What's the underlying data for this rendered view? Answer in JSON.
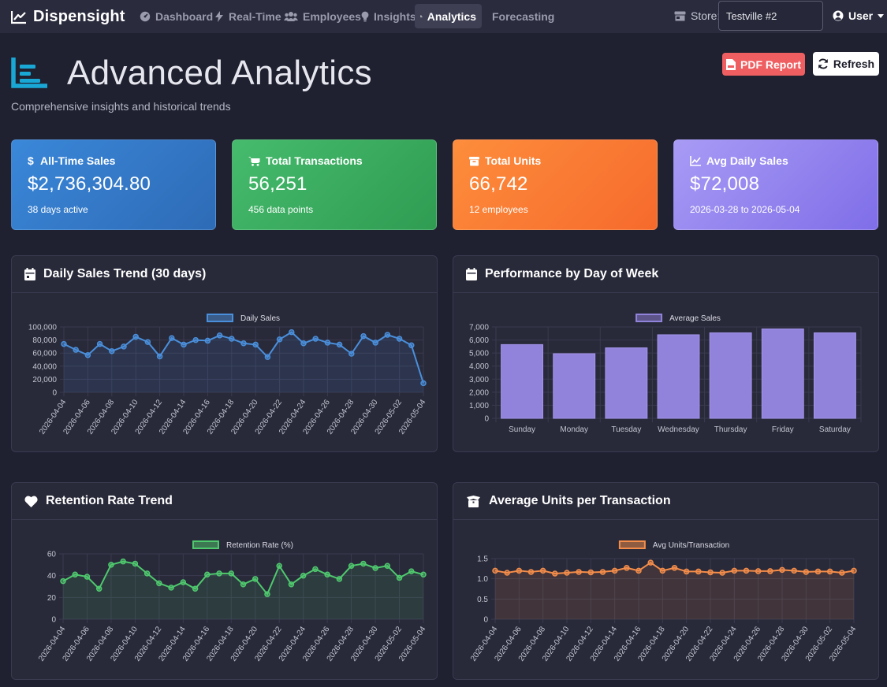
{
  "app": {
    "brand": "Dispensight",
    "nav": [
      {
        "label": "Dashboard",
        "icon": "dashboard-gauge-icon"
      },
      {
        "label": "Real-Time",
        "icon": "bolt-icon"
      },
      {
        "label": "Employees",
        "icon": "users-icon"
      },
      {
        "label": "Insights",
        "icon": "lightbulb-icon"
      },
      {
        "label": "Analytics",
        "icon": "chart-line-icon",
        "active": true
      },
      {
        "label": "Forecasting",
        "icon": ""
      }
    ],
    "store_label": "Store:",
    "store_value": "Testville #2",
    "user_label": "User"
  },
  "header": {
    "title": "Advanced Analytics",
    "subtitle": "Comprehensive insights and historical trends",
    "pdf_button": "PDF Report",
    "refresh_button": "Refresh"
  },
  "stats": [
    {
      "label": "All-Time Sales",
      "value": "$2,736,304.80",
      "note": "38 days active",
      "icon": "dollar-icon"
    },
    {
      "label": "Total Transactions",
      "value": "56,251",
      "note": "456 data points",
      "icon": "cart-icon"
    },
    {
      "label": "Total Units",
      "value": "66,742",
      "note": "12 employees",
      "icon": "box-icon"
    },
    {
      "label": "Avg Daily Sales",
      "value": "$72,008",
      "note": "2026-03-28 to 2026-05-04",
      "icon": "chart-area-icon"
    }
  ],
  "colors": {
    "sales_line": "#4a8fdc",
    "dow_bar": "#9182dc",
    "retention_line": "#4fc96e",
    "units_line": "#f58d4a",
    "gridline": "#3a3b4f"
  },
  "chart_data": [
    {
      "id": "daily_sales",
      "type": "line",
      "card_title": "Daily Sales Trend (30 days)",
      "legend": "Daily Sales",
      "x": [
        "2026-04-04",
        "2026-04-05",
        "2026-04-06",
        "2026-04-07",
        "2026-04-08",
        "2026-04-09",
        "2026-04-10",
        "2026-04-11",
        "2026-04-12",
        "2026-04-13",
        "2026-04-14",
        "2026-04-15",
        "2026-04-16",
        "2026-04-17",
        "2026-04-18",
        "2026-04-19",
        "2026-04-20",
        "2026-04-21",
        "2026-04-22",
        "2026-04-23",
        "2026-04-24",
        "2026-04-25",
        "2026-04-26",
        "2026-04-27",
        "2026-04-28",
        "2026-04-29",
        "2026-04-30",
        "2026-05-01",
        "2026-05-02",
        "2026-05-03",
        "2026-05-04"
      ],
      "xticks": [
        "2026-04-04",
        "2026-04-06",
        "2026-04-08",
        "2026-04-10",
        "2026-04-12",
        "2026-04-14",
        "2026-04-16",
        "2026-04-18",
        "2026-04-20",
        "2026-04-22",
        "2026-04-24",
        "2026-04-26",
        "2026-04-28",
        "2026-04-30",
        "2026-05-02",
        "2026-05-04"
      ],
      "values": [
        74000,
        65000,
        57000,
        74000,
        63000,
        70000,
        85000,
        77000,
        55000,
        83000,
        73000,
        80000,
        79000,
        87000,
        82000,
        75000,
        73000,
        54000,
        81000,
        92000,
        75000,
        82000,
        76000,
        73000,
        59000,
        86000,
        76000,
        88000,
        82000,
        72000,
        14000
      ],
      "ylim": [
        0,
        100000
      ],
      "yticks": [
        "0",
        "20,000",
        "40,000",
        "60,000",
        "80,000",
        "100,000"
      ],
      "grid": true
    },
    {
      "id": "day_of_week",
      "type": "bar",
      "card_title": "Performance by Day of Week",
      "legend": "Average Sales",
      "categories": [
        "Sunday",
        "Monday",
        "Tuesday",
        "Wednesday",
        "Thursday",
        "Friday",
        "Saturday"
      ],
      "values": [
        5650,
        4950,
        5400,
        6400,
        6550,
        6850,
        6550
      ],
      "ylim": [
        0,
        7000
      ],
      "yticks": [
        "0",
        "1,000",
        "2,000",
        "3,000",
        "4,000",
        "5,000",
        "6,000",
        "7,000"
      ],
      "grid": true
    },
    {
      "id": "retention",
      "type": "line",
      "card_title": "Retention Rate Trend",
      "legend": "Retention Rate (%)",
      "x": [
        "2026-04-04",
        "2026-04-05",
        "2026-04-06",
        "2026-04-07",
        "2026-04-08",
        "2026-04-09",
        "2026-04-10",
        "2026-04-11",
        "2026-04-12",
        "2026-04-13",
        "2026-04-14",
        "2026-04-15",
        "2026-04-16",
        "2026-04-17",
        "2026-04-18",
        "2026-04-19",
        "2026-04-20",
        "2026-04-21",
        "2026-04-22",
        "2026-04-23",
        "2026-04-24",
        "2026-04-25",
        "2026-04-26",
        "2026-04-27",
        "2026-04-28",
        "2026-04-29",
        "2026-04-30",
        "2026-05-01",
        "2026-05-02",
        "2026-05-03",
        "2026-05-04"
      ],
      "xticks": [
        "2026-04-04",
        "2026-04-06",
        "2026-04-08",
        "2026-04-10",
        "2026-04-12",
        "2026-04-14",
        "2026-04-16",
        "2026-04-18",
        "2026-04-20",
        "2026-04-22",
        "2026-04-24",
        "2026-04-26",
        "2026-04-28",
        "2026-04-30",
        "2026-05-02",
        "2026-05-04"
      ],
      "values": [
        35,
        41,
        39,
        28,
        50,
        53,
        51,
        42,
        33,
        29,
        34,
        28,
        41,
        42,
        42,
        32,
        37,
        23,
        49,
        32,
        40,
        46,
        41,
        37,
        49,
        51,
        47,
        49,
        38,
        44,
        41
      ],
      "ylim": [
        0,
        60
      ],
      "yticks": [
        "0",
        "20",
        "40",
        "60"
      ],
      "grid": true
    },
    {
      "id": "units_per_txn",
      "type": "line",
      "card_title": "Average Units per Transaction",
      "legend": "Avg Units/Transaction",
      "x": [
        "2026-04-04",
        "2026-04-05",
        "2026-04-06",
        "2026-04-07",
        "2026-04-08",
        "2026-04-09",
        "2026-04-10",
        "2026-04-11",
        "2026-04-12",
        "2026-04-13",
        "2026-04-14",
        "2026-04-15",
        "2026-04-16",
        "2026-04-17",
        "2026-04-18",
        "2026-04-19",
        "2026-04-20",
        "2026-04-21",
        "2026-04-22",
        "2026-04-23",
        "2026-04-24",
        "2026-04-25",
        "2026-04-26",
        "2026-04-27",
        "2026-04-28",
        "2026-04-29",
        "2026-04-30",
        "2026-05-01",
        "2026-05-02",
        "2026-05-03",
        "2026-05-04"
      ],
      "xticks": [
        "2026-04-04",
        "2026-04-06",
        "2026-04-08",
        "2026-04-10",
        "2026-04-12",
        "2026-04-14",
        "2026-04-16",
        "2026-04-18",
        "2026-04-20",
        "2026-04-22",
        "2026-04-24",
        "2026-04-26",
        "2026-04-28",
        "2026-04-30",
        "2026-05-02",
        "2026-05-04"
      ],
      "values": [
        1.2,
        1.15,
        1.2,
        1.17,
        1.2,
        1.13,
        1.15,
        1.17,
        1.16,
        1.17,
        1.2,
        1.27,
        1.2,
        1.4,
        1.2,
        1.27,
        1.18,
        1.18,
        1.16,
        1.15,
        1.2,
        1.2,
        1.19,
        1.19,
        1.22,
        1.2,
        1.17,
        1.18,
        1.18,
        1.15,
        1.2
      ],
      "ylim": [
        0,
        1.5
      ],
      "yticks": [
        "0",
        "0.5",
        "1.0",
        "1.5"
      ],
      "grid": true
    }
  ]
}
